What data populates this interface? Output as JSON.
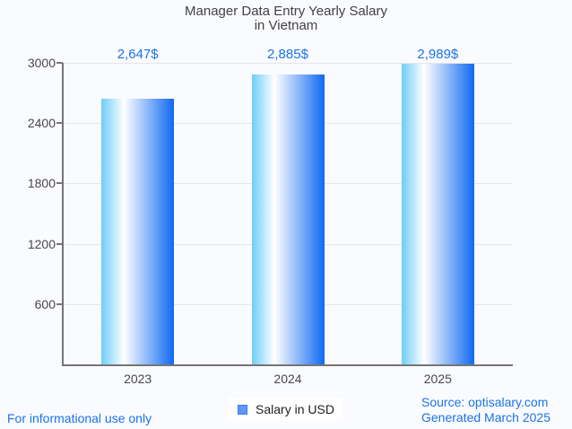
{
  "title": {
    "line1": "Manager Data Entry Yearly Salary",
    "line2": "in Vietnam"
  },
  "chart_data": {
    "type": "bar",
    "title": "Manager Data Entry Yearly Salary in Vietnam",
    "categories": [
      "2023",
      "2024",
      "2025"
    ],
    "series": [
      {
        "name": "Salary in USD",
        "values": [
          2647,
          2885,
          2989
        ]
      }
    ],
    "value_labels": [
      "2,647$",
      "2,885$",
      "2,989$"
    ],
    "xlabel": "",
    "ylabel": "",
    "ylim": [
      0,
      3000
    ],
    "yticks": [
      600,
      1200,
      1800,
      2400,
      3000
    ],
    "grid": "horizontal",
    "legend_position": "bottom-center",
    "bar_orientation": "vertical"
  },
  "legend": {
    "label": "Salary in USD"
  },
  "footer": {
    "note": "For informational use only",
    "source": "Source: optisalary.com",
    "generated": "Generated March 2025"
  },
  "colors": {
    "accent_blue": "#1a73e8",
    "title_text": "#424242",
    "tick_text": "#474747",
    "axis": "#757575",
    "gridline": "#e6e6e6",
    "bar_gradient": [
      "#6ecdf9",
      "#ffffff",
      "#0f69f3"
    ],
    "legend_square_fill": "#5e97f6",
    "legend_square_border": "#3e7de0",
    "background": "#fafbff"
  }
}
